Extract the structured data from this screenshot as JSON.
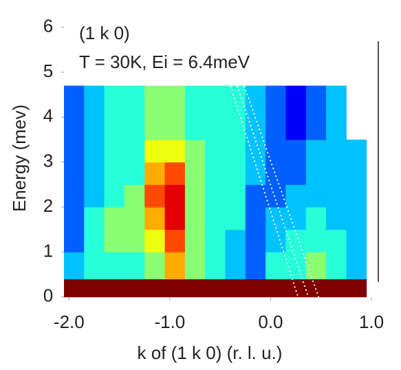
{
  "chart_data": {
    "type": "heatmap",
    "annotations": [
      "(1 k 0)",
      "T = 30K, Ei = 6.4meV"
    ],
    "xlabel": "k of (1 k 0) (r. l. u.)",
    "ylabel": "Energy (mev)",
    "xlim": [
      -2.05,
      1.0
    ],
    "xticks": [
      {
        "value": -2,
        "label": "-2.0"
      },
      {
        "value": -1,
        "label": "-1.0"
      },
      {
        "value": 0,
        "label": "0.0"
      },
      {
        "value": 1,
        "label": "1.0"
      }
    ],
    "ylim": [
      -0.08,
      6.3
    ],
    "yticks": [
      0,
      1,
      2,
      3,
      4,
      5,
      6
    ],
    "xbins": [
      -2.05,
      -1.85,
      -1.65,
      -1.45,
      -1.25,
      -1.05,
      -0.85,
      -0.65,
      -0.45,
      -0.25,
      -0.05,
      0.15,
      0.35,
      0.55,
      0.75,
      0.95
    ],
    "ybins": [
      0,
      0.4,
      1,
      1.5,
      2,
      2.5,
      3,
      3.5,
      4,
      4.7
    ],
    "z": [
      [
        10,
        10,
        10,
        10,
        10,
        10,
        10,
        10,
        10,
        10,
        10,
        10,
        10,
        10,
        10
      ],
      [
        3,
        4,
        4,
        4,
        5,
        7,
        5,
        4,
        3,
        2,
        4,
        4,
        5,
        4,
        3
      ],
      [
        2,
        4,
        5,
        5,
        6,
        8,
        5,
        4,
        3,
        2,
        3,
        4,
        4,
        4,
        3
      ],
      [
        2,
        4,
        5,
        5,
        7,
        9,
        5,
        4,
        4,
        2,
        3,
        3,
        4,
        3,
        3
      ],
      [
        2,
        3,
        4,
        5,
        8,
        9,
        5,
        4,
        4,
        2,
        2,
        3,
        3,
        3,
        3
      ],
      [
        2,
        3,
        4,
        4,
        7,
        8,
        5,
        4,
        4,
        3,
        2,
        2,
        3,
        3,
        3
      ],
      [
        2,
        3,
        4,
        4,
        6,
        6,
        5,
        4,
        4,
        3,
        2,
        2,
        3,
        3,
        3
      ],
      [
        2,
        3,
        4,
        4,
        5,
        5,
        4,
        4,
        4,
        3,
        2,
        1,
        2,
        3,
        null
      ],
      [
        2,
        3,
        4,
        4,
        5,
        5,
        4,
        4,
        4,
        3,
        2,
        1,
        2,
        3,
        null
      ]
    ]
  }
}
